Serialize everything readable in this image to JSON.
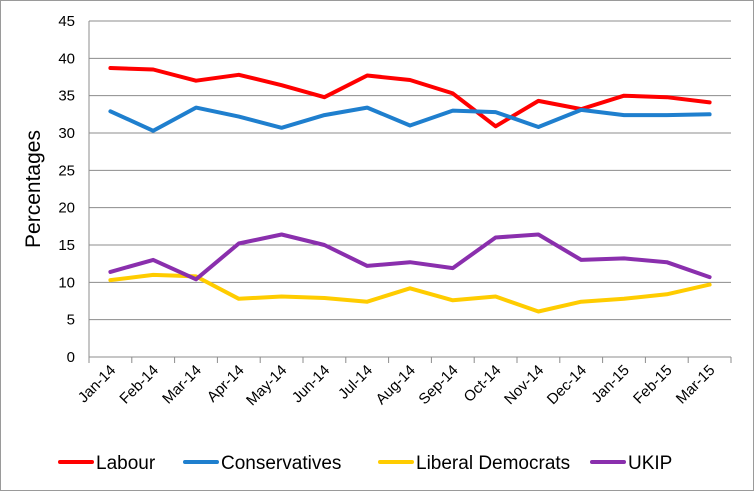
{
  "chart_data": {
    "type": "line",
    "title": "",
    "xlabel": "",
    "ylabel": "Percentages",
    "ylim": [
      0,
      45
    ],
    "yticks": [
      0,
      5,
      10,
      15,
      20,
      25,
      30,
      35,
      40,
      45
    ],
    "grid": true,
    "legend_position": "bottom",
    "categories": [
      "Jan-14",
      "Feb-14",
      "Mar-14",
      "Apr-14",
      "May-14",
      "Jun-14",
      "Jul-14",
      "Aug-14",
      "Sep-14",
      "Oct-14",
      "Nov-14",
      "Dec-14",
      "Jan-15",
      "Feb-15",
      "Mar-15"
    ],
    "series": [
      {
        "name": "Labour",
        "color": "#ff0000",
        "values": [
          38.7,
          38.5,
          37.0,
          37.8,
          36.4,
          34.8,
          37.7,
          37.1,
          35.3,
          30.9,
          34.3,
          33.2,
          35.0,
          34.8,
          34.1
        ]
      },
      {
        "name": "Conservatives",
        "color": "#1f7fce",
        "values": [
          32.9,
          30.3,
          33.4,
          32.2,
          30.7,
          32.4,
          33.4,
          31.0,
          33.0,
          32.8,
          30.8,
          33.1,
          32.4,
          32.4,
          32.5
        ]
      },
      {
        "name": "Liberal Democrats",
        "color": "#ffcc00",
        "values": [
          10.3,
          11.0,
          10.8,
          7.8,
          8.1,
          7.9,
          7.4,
          9.2,
          7.6,
          8.1,
          6.1,
          7.4,
          7.8,
          8.4,
          9.7
        ]
      },
      {
        "name": "UKIP",
        "color": "#8a2fad",
        "values": [
          11.4,
          13.0,
          10.4,
          15.2,
          16.4,
          15.0,
          12.2,
          12.7,
          11.9,
          16.0,
          16.4,
          13.0,
          13.2,
          12.7,
          10.7
        ]
      }
    ]
  }
}
